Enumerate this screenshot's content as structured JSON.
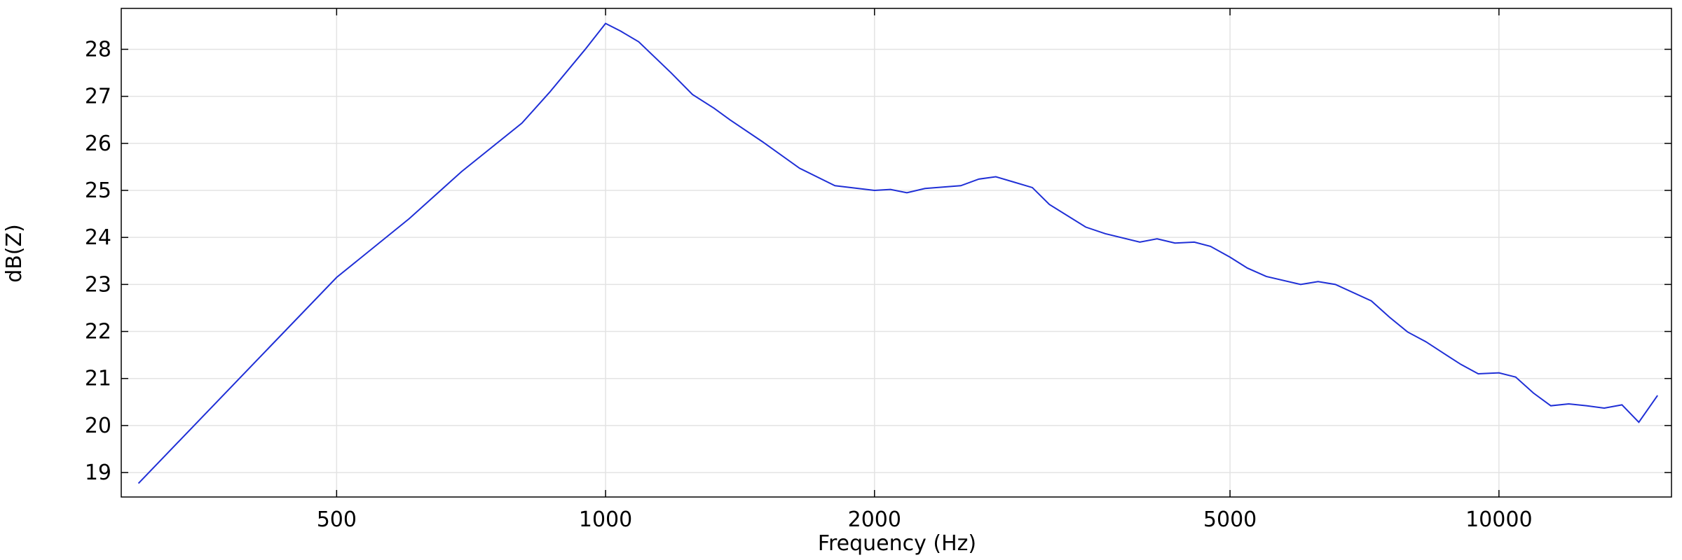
{
  "chart_data": {
    "type": "line",
    "x_label": "Frequency (Hz)",
    "y_label": "dB(Z)",
    "x": [
      300,
      500,
      603,
      690,
      806,
      866,
      949,
      1000,
      1039,
      1089,
      1184,
      1251,
      1322,
      1378,
      1497,
      1649,
      1806,
      2000,
      2084,
      2174,
      2278,
      2498,
      2617,
      2734,
      2860,
      3004,
      3139,
      3447,
      3625,
      3963,
      4143,
      4339,
      4560,
      4754,
      5000,
      5226,
      5490,
      5998,
      6274,
      6560,
      7197,
      7546,
      7901,
      8287,
      8680,
      9065,
      9480,
      10000,
      10440,
      10930,
      11430,
      11970,
      12530,
      13120,
      13730,
      14340,
      15050
    ],
    "values": [
      18.77,
      23.15,
      24.4,
      25.4,
      26.43,
      27.09,
      28.0,
      28.55,
      28.39,
      28.16,
      27.5,
      27.04,
      26.75,
      26.5,
      26.04,
      25.47,
      25.1,
      25.0,
      25.02,
      24.95,
      25.04,
      25.1,
      25.24,
      25.29,
      25.18,
      25.06,
      24.7,
      24.22,
      24.08,
      23.9,
      23.97,
      23.88,
      23.9,
      23.81,
      23.58,
      23.35,
      23.17,
      23.0,
      23.06,
      23.0,
      22.65,
      22.3,
      21.99,
      21.78,
      21.53,
      21.3,
      21.1,
      21.12,
      21.03,
      20.69,
      20.42,
      20.46,
      20.42,
      20.37,
      20.44,
      20.07,
      20.64
    ],
    "color": "#1f2fd6",
    "xscale": "log",
    "grid": true,
    "xlim": [
      287,
      15600
    ],
    "xticks": [
      500,
      1000,
      2000,
      5000,
      10000
    ],
    "ylim": [
      18.48,
      28.87
    ],
    "yticks": [
      19,
      20,
      21,
      22,
      23,
      24,
      25,
      26,
      27,
      28
    ]
  }
}
